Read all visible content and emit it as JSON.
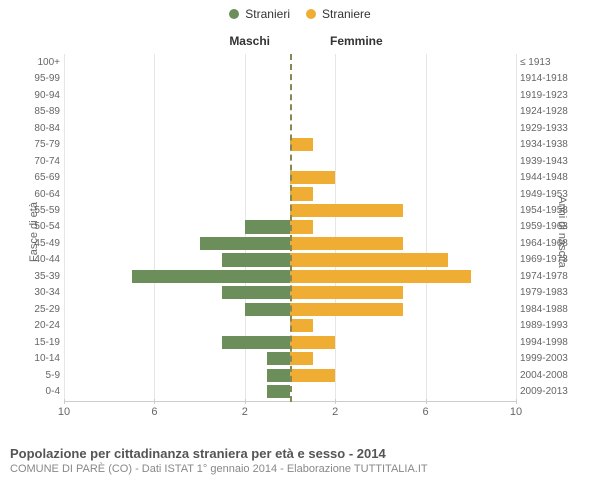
{
  "legend": {
    "male": {
      "label": "Stranieri",
      "color": "#6b8e5a"
    },
    "female": {
      "label": "Straniere",
      "color": "#f0ad33"
    }
  },
  "headers": {
    "male": "Maschi",
    "female": "Femmine"
  },
  "axis_titles": {
    "left": "Fasce di età",
    "right": "Anni di nascita"
  },
  "pyramid": {
    "type": "population-pyramid",
    "xmax": 10,
    "x_ticks_left": [
      10,
      6,
      2
    ],
    "x_ticks_right": [
      2,
      6,
      10
    ],
    "background_color": "#ffffff",
    "grid_color": "#e6e6e6",
    "rows": [
      {
        "age": "100+",
        "year": "≤ 1913",
        "m": 0,
        "f": 0
      },
      {
        "age": "95-99",
        "year": "1914-1918",
        "m": 0,
        "f": 0
      },
      {
        "age": "90-94",
        "year": "1919-1923",
        "m": 0,
        "f": 0
      },
      {
        "age": "85-89",
        "year": "1924-1928",
        "m": 0,
        "f": 0
      },
      {
        "age": "80-84",
        "year": "1929-1933",
        "m": 0,
        "f": 0
      },
      {
        "age": "75-79",
        "year": "1934-1938",
        "m": 0,
        "f": 1.0
      },
      {
        "age": "70-74",
        "year": "1939-1943",
        "m": 0,
        "f": 0
      },
      {
        "age": "65-69",
        "year": "1944-1948",
        "m": 0,
        "f": 2.0
      },
      {
        "age": "60-64",
        "year": "1949-1953",
        "m": 0,
        "f": 1.0
      },
      {
        "age": "55-59",
        "year": "1954-1958",
        "m": 0,
        "f": 5.0
      },
      {
        "age": "50-54",
        "year": "1959-1963",
        "m": 2.0,
        "f": 1.0
      },
      {
        "age": "45-49",
        "year": "1964-1968",
        "m": 4.0,
        "f": 5.0
      },
      {
        "age": "40-44",
        "year": "1969-1973",
        "m": 3.0,
        "f": 7.0
      },
      {
        "age": "35-39",
        "year": "1974-1978",
        "m": 7.0,
        "f": 8.0
      },
      {
        "age": "30-34",
        "year": "1979-1983",
        "m": 3.0,
        "f": 5.0
      },
      {
        "age": "25-29",
        "year": "1984-1988",
        "m": 2.0,
        "f": 5.0
      },
      {
        "age": "20-24",
        "year": "1989-1993",
        "m": 0,
        "f": 1.0
      },
      {
        "age": "15-19",
        "year": "1994-1998",
        "m": 3.0,
        "f": 2.0
      },
      {
        "age": "10-14",
        "year": "1999-2003",
        "m": 1.0,
        "f": 1.0
      },
      {
        "age": "5-9",
        "year": "2004-2008",
        "m": 1.0,
        "f": 2.0
      },
      {
        "age": "0-4",
        "year": "2009-2013",
        "m": 1.0,
        "f": 0
      }
    ],
    "bar_color_male": "#6b8e5a",
    "bar_color_female": "#f0ad33",
    "bar_height_ratio": 0.8,
    "axis_line_color": "#cccccc",
    "tick_font_size": 11,
    "label_font_size": 10
  },
  "footer": {
    "title": "Popolazione per cittadinanza straniera per età e sesso - 2014",
    "subtitle": "COMUNE DI PARÈ (CO) - Dati ISTAT 1° gennaio 2014 - Elaborazione TUTTITALIA.IT"
  }
}
